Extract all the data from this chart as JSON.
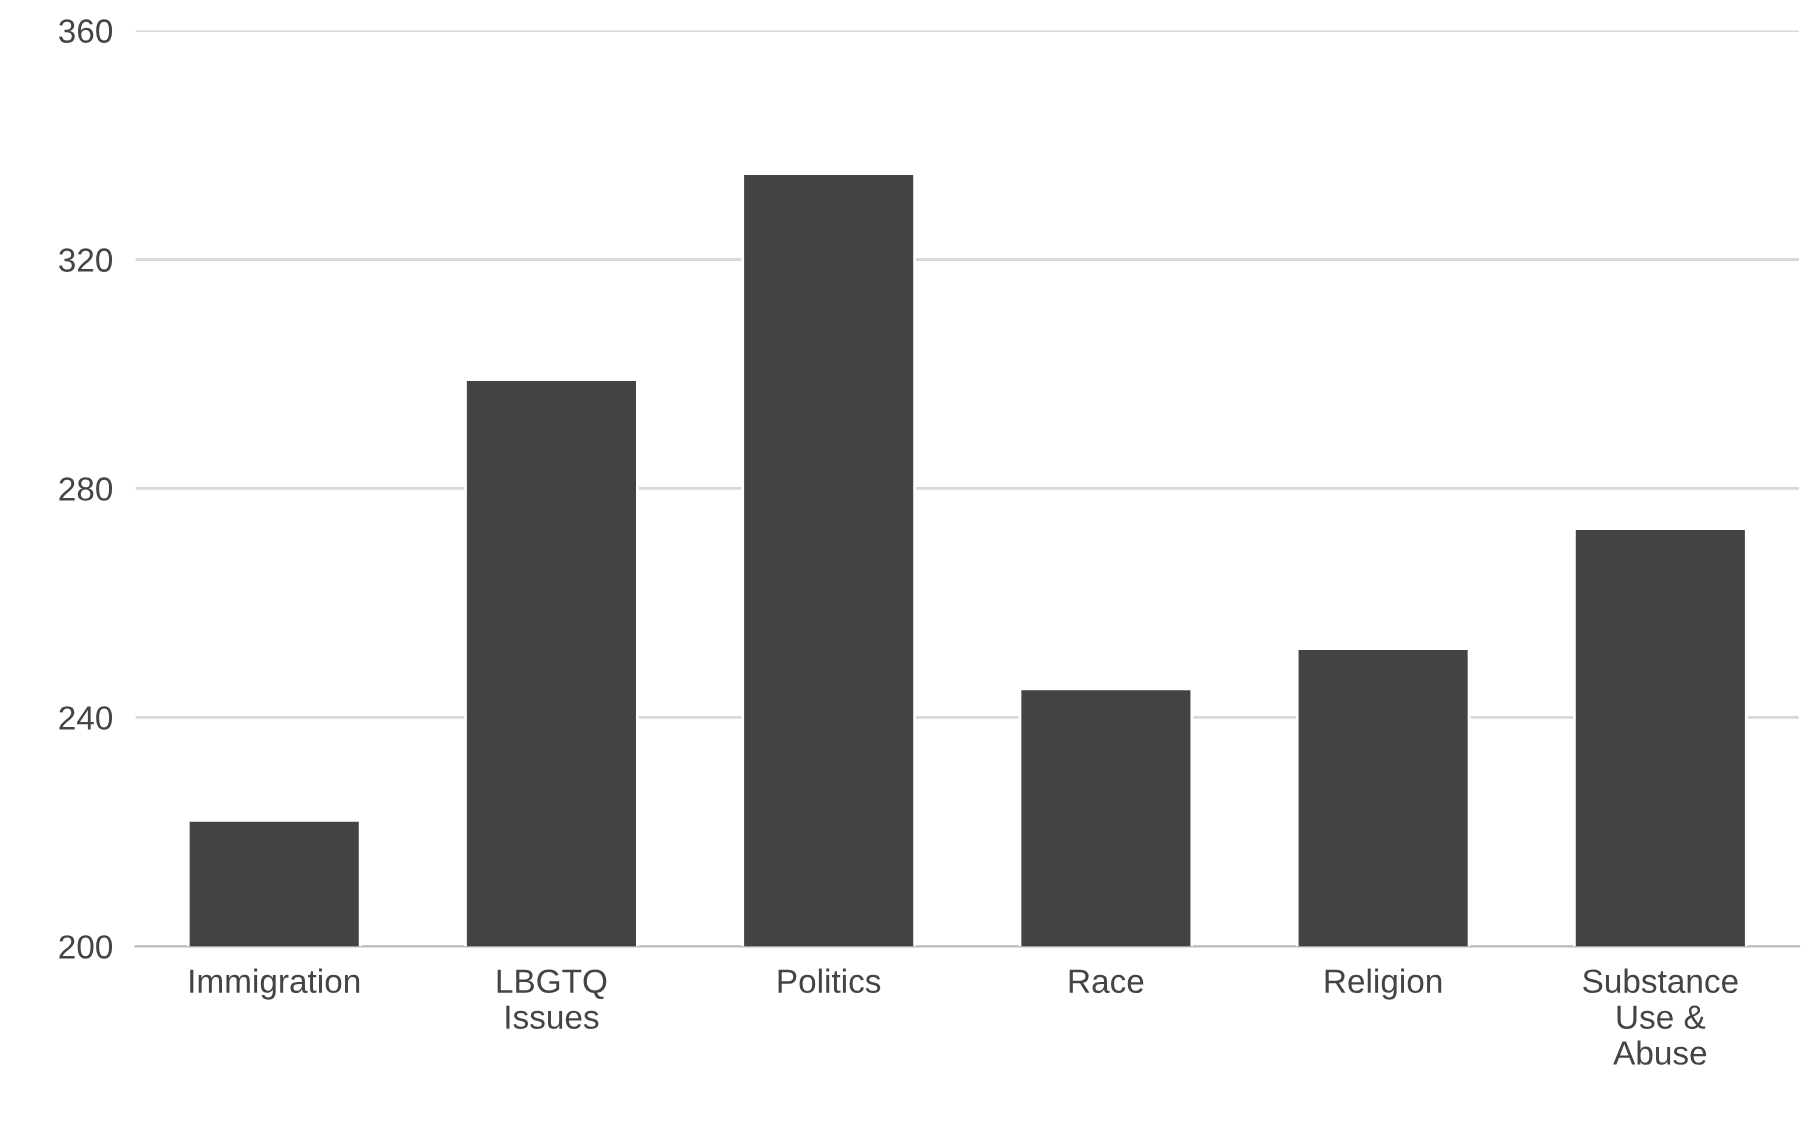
{
  "chart_data": {
    "type": "bar",
    "categories": [
      "Immigration",
      "LBGTQ\nIssues",
      "Politics",
      "Race",
      "Religion",
      "Substance\nUse &\nAbuse"
    ],
    "values": [
      222,
      299,
      335,
      245,
      252,
      273
    ],
    "color": "#434343",
    "ylim": [
      200,
      360
    ],
    "yticks": [
      200,
      240,
      280,
      320,
      360
    ],
    "grid": "y"
  }
}
